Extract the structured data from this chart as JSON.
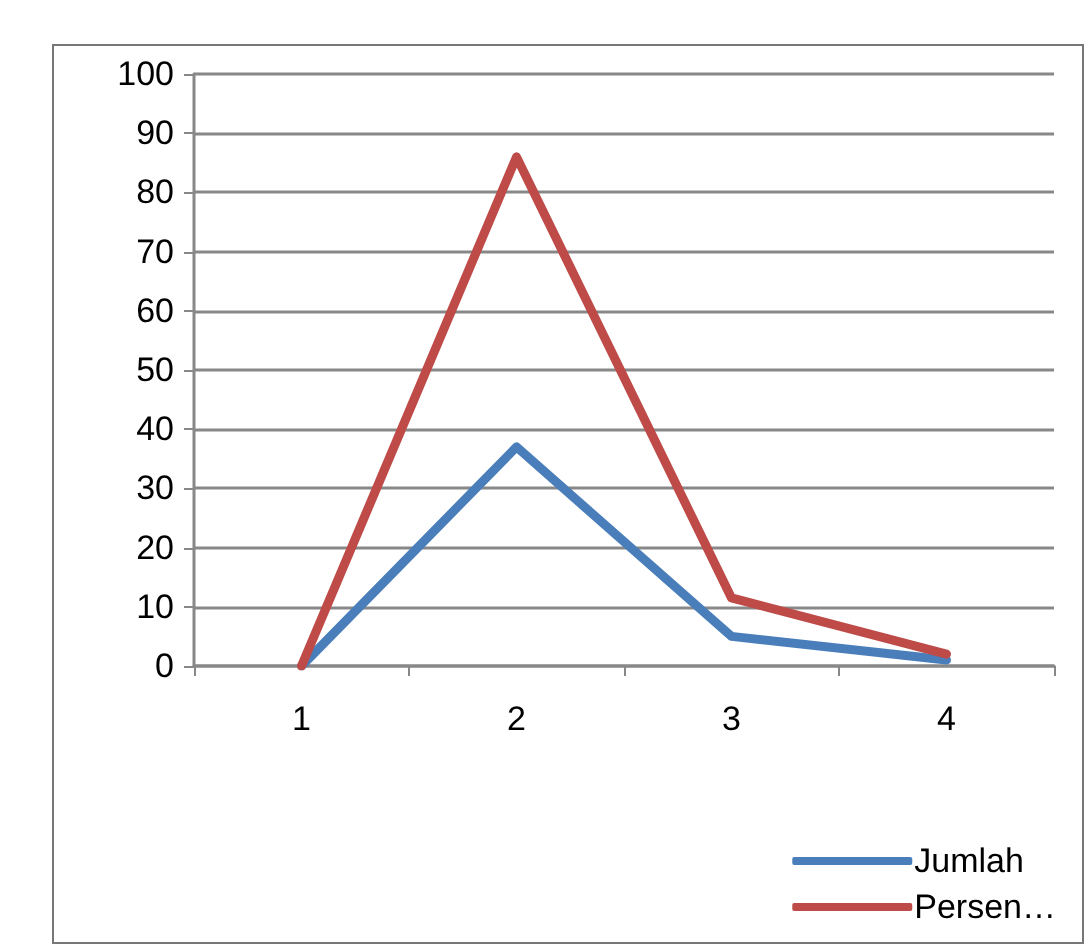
{
  "chart_data": {
    "type": "line",
    "categories": [
      "1",
      "2",
      "3",
      "4"
    ],
    "series": [
      {
        "name": "Jumlah",
        "color": "#4a7ebb",
        "values": [
          0,
          37,
          5,
          1
        ]
      },
      {
        "name": "Persen…",
        "color": "#be4b48",
        "values": [
          0,
          86,
          11.5,
          2
        ]
      }
    ],
    "ylim": [
      0,
      100
    ],
    "yticks": [
      0,
      10,
      20,
      30,
      40,
      50,
      60,
      70,
      80,
      90,
      100
    ],
    "grid": "y",
    "legend": "bottom right",
    "marker": "none",
    "line_style": "solid"
  }
}
